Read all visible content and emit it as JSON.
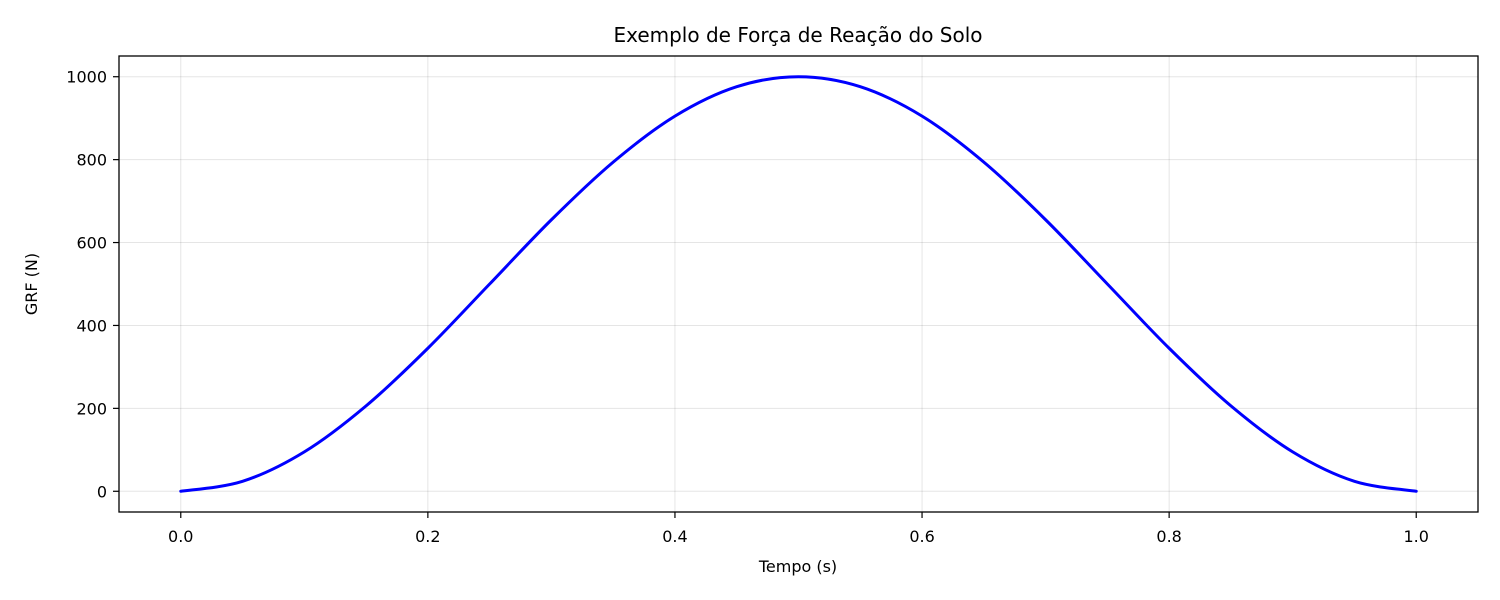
{
  "chart_data": {
    "type": "line",
    "title": "Exemplo de Força de Reação do Solo",
    "xlabel": "Tempo (s)",
    "ylabel": "GRF (N)",
    "xlim": [
      -0.05,
      1.05
    ],
    "ylim": [
      -50,
      1050
    ],
    "xticks": [
      0.0,
      0.2,
      0.4,
      0.6,
      0.8,
      1.0
    ],
    "xtick_labels": [
      "0.0",
      "0.2",
      "0.4",
      "0.6",
      "0.8",
      "1.0"
    ],
    "yticks": [
      0,
      200,
      400,
      600,
      800,
      1000
    ],
    "ytick_labels": [
      "0",
      "200",
      "400",
      "600",
      "800",
      "1000"
    ],
    "grid": true,
    "series": [
      {
        "color": "#0000ff",
        "x": [
          0.0,
          0.05,
          0.1,
          0.15,
          0.2,
          0.25,
          0.3,
          0.35,
          0.4,
          0.45,
          0.5,
          0.55,
          0.6,
          0.65,
          0.7,
          0.75,
          0.8,
          0.85,
          0.9,
          0.95,
          1.0
        ],
        "y": [
          0,
          24,
          95,
          206,
          345,
          500,
          655,
          794,
          905,
          976,
          1000,
          976,
          905,
          794,
          655,
          500,
          345,
          206,
          95,
          24,
          0
        ]
      }
    ]
  }
}
